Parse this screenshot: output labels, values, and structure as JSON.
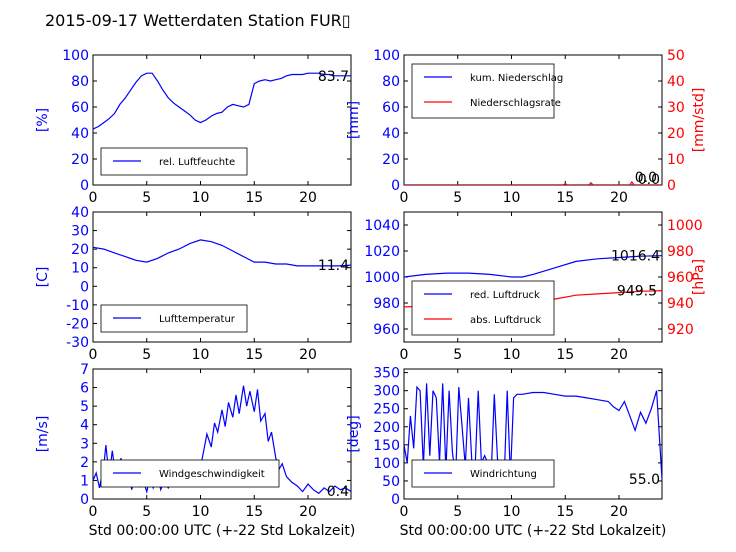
{
  "title": "2015-09-17 Wetterdaten Station FUR▯",
  "colors": {
    "primary": "#0000ff",
    "secondary": "#ff0000",
    "text": "#000000"
  },
  "chart_data": [
    {
      "type": "line",
      "id": "humidity",
      "ylabel": "[%]",
      "xlabel": "",
      "xlim": [
        0,
        24
      ],
      "ylim": [
        0,
        100
      ],
      "xticks": [
        0,
        5,
        10,
        15,
        20
      ],
      "yticks": [
        0,
        20,
        40,
        60,
        80,
        100
      ],
      "legend": "bottom-left",
      "end_label": "83.7",
      "series": [
        {
          "name": "rel. Luftfeuchte",
          "color": "#0000ff",
          "axis": "left",
          "x": [
            0,
            0.5,
            1,
            1.5,
            2,
            2.5,
            3,
            3.5,
            4,
            4.5,
            5,
            5.5,
            6,
            6.5,
            7,
            7.5,
            8,
            8.5,
            9,
            9.5,
            10,
            10.5,
            11,
            11.5,
            12,
            12.5,
            13,
            13.5,
            14,
            14.5,
            15,
            15.5,
            16,
            16.5,
            17,
            17.5,
            18,
            18.5,
            19,
            19.5,
            20,
            20.5,
            21,
            21.5,
            22,
            22.5,
            23,
            23.5,
            24
          ],
          "values": [
            43,
            45,
            48,
            51,
            55,
            62,
            67,
            73,
            79,
            84,
            86,
            86,
            80,
            73,
            67,
            63,
            60,
            57,
            54,
            50,
            48,
            50,
            53,
            55,
            56,
            60,
            62,
            61,
            60,
            62,
            78,
            80,
            81,
            80,
            81,
            82,
            84,
            85,
            85,
            85,
            86,
            86,
            86,
            85,
            85,
            84,
            84,
            84,
            84
          ]
        }
      ]
    },
    {
      "type": "line",
      "id": "precip",
      "ylabel": "[mm]",
      "y2label": "[mm/std]",
      "xlabel": "",
      "xlim": [
        0,
        24
      ],
      "ylim": [
        0,
        100
      ],
      "y2lim": [
        0,
        50
      ],
      "xticks": [
        0,
        5,
        10,
        15,
        20
      ],
      "yticks": [
        0,
        20,
        40,
        60,
        80,
        100
      ],
      "y2ticks": [
        0,
        10,
        20,
        30,
        40,
        50
      ],
      "legend": "top-left",
      "end_labels": [
        "0.0",
        "0.0"
      ],
      "series": [
        {
          "name": "kum. Niederschlag",
          "color": "#0000ff",
          "axis": "left",
          "x": [
            0,
            24
          ],
          "values": [
            0,
            0
          ]
        },
        {
          "name": "Niederschlagsrate",
          "color": "#ff0000",
          "axis": "right",
          "x": [
            0,
            14.8,
            15,
            15.2,
            17.2,
            17.4,
            17.6,
            21,
            21.2,
            21.4,
            24
          ],
          "values": [
            0,
            0,
            0.5,
            0,
            0,
            0.9,
            0,
            0,
            1.2,
            0,
            0
          ]
        }
      ]
    },
    {
      "type": "line",
      "id": "temperature",
      "ylabel": "[C]",
      "xlabel": "",
      "xlim": [
        0,
        24
      ],
      "ylim": [
        -30,
        40
      ],
      "xticks": [
        0,
        5,
        10,
        15,
        20
      ],
      "yticks": [
        -30,
        -20,
        -10,
        0,
        10,
        20,
        30,
        40
      ],
      "legend": "bottom-left",
      "end_label": "11.4",
      "series": [
        {
          "name": "Lufttemperatur",
          "color": "#0000ff",
          "axis": "left",
          "x": [
            0,
            1,
            2,
            3,
            4,
            5,
            6,
            7,
            8,
            9,
            10,
            11,
            12,
            13,
            14,
            15,
            16,
            17,
            18,
            19,
            20,
            21,
            22,
            23,
            24
          ],
          "values": [
            21,
            20,
            18,
            16,
            14,
            13,
            15,
            18,
            20,
            23,
            25,
            24,
            22,
            19,
            16,
            13,
            13,
            12,
            12,
            11,
            11,
            11,
            11,
            11,
            11.4
          ]
        }
      ]
    },
    {
      "type": "line",
      "id": "pressure",
      "ylabel": "",
      "y2label": "[hPa]",
      "xlabel": "",
      "xlim": [
        0,
        24
      ],
      "ylim": [
        950,
        1050
      ],
      "y2lim": [
        910,
        1010
      ],
      "xticks": [
        0,
        5,
        10,
        15,
        20
      ],
      "yticks": [
        960,
        980,
        1000,
        1020,
        1040
      ],
      "y2ticks": [
        920,
        940,
        960,
        980,
        1000
      ],
      "legend": "bottom-left",
      "end_labels": [
        "1016.4",
        "949.5"
      ],
      "series": [
        {
          "name": "red. Luftdruck",
          "color": "#0000ff",
          "axis": "left",
          "x": [
            0,
            2,
            4,
            6,
            8,
            10,
            11,
            12,
            14,
            16,
            18,
            20,
            22,
            24
          ],
          "values": [
            1000,
            1002,
            1003,
            1003,
            1002,
            1000,
            1000,
            1002,
            1007,
            1012,
            1014,
            1015,
            1016,
            1016.4
          ]
        },
        {
          "name": "abs. Luftdruck",
          "color": "#ff0000",
          "axis": "right",
          "x": [
            0,
            2,
            4,
            6,
            8,
            10,
            11,
            12,
            14,
            16,
            18,
            20,
            22,
            24
          ],
          "values": [
            937,
            937.5,
            938,
            938,
            937.5,
            937,
            937.5,
            939,
            943,
            946,
            947,
            948,
            949,
            949.5
          ]
        }
      ]
    },
    {
      "type": "line",
      "id": "windspeed",
      "ylabel": "[m/s]",
      "xlabel": "Std 00:00:00 UTC (+-22 Std Lokalzeit)",
      "xlim": [
        0,
        24
      ],
      "ylim": [
        0,
        7
      ],
      "xticks": [
        0,
        5,
        10,
        15,
        20
      ],
      "yticks": [
        0,
        1,
        2,
        3,
        4,
        5,
        6,
        7
      ],
      "legend": "bottom-center",
      "end_label": "0.4",
      "series": [
        {
          "name": "Windgeschwindigkeit",
          "color": "#0000ff",
          "axis": "left",
          "x": [
            0,
            0.3,
            0.6,
            1,
            1.2,
            1.5,
            1.8,
            2,
            2.3,
            2.6,
            3,
            3.3,
            3.6,
            4,
            4.3,
            4.6,
            5,
            5.3,
            5.6,
            6,
            6.3,
            6.6,
            7,
            7.3,
            7.6,
            8,
            8.3,
            8.6,
            9,
            9.3,
            9.6,
            10,
            10.3,
            10.6,
            11,
            11.3,
            11.6,
            12,
            12.3,
            12.6,
            13,
            13.3,
            13.6,
            14,
            14.3,
            14.6,
            15,
            15.3,
            15.6,
            16,
            16.3,
            16.6,
            17,
            17.3,
            17.6,
            18,
            18.5,
            19,
            19.5,
            20,
            20.5,
            21,
            21.5,
            22,
            22.5,
            23,
            23.5,
            24
          ],
          "values": [
            1.0,
            1.4,
            0.6,
            1.8,
            2.9,
            1.2,
            2.6,
            1.7,
            0.9,
            2.2,
            0.8,
            1.8,
            0.5,
            1.5,
            0.7,
            1.1,
            0.4,
            1.2,
            0.6,
            1.3,
            0.5,
            0.9,
            0.6,
            1.0,
            1.4,
            0.8,
            1.6,
            1.1,
            1.9,
            1.3,
            2.0,
            1.7,
            2.6,
            3.5,
            2.8,
            4.1,
            3.6,
            4.8,
            3.9,
            5.2,
            4.4,
            5.6,
            4.6,
            6.1,
            5.0,
            5.8,
            4.7,
            5.9,
            4.2,
            4.6,
            3.1,
            3.6,
            2.2,
            1.6,
            1.9,
            1.2,
            0.9,
            0.7,
            0.4,
            0.8,
            0.5,
            0.3,
            0.6,
            0.4,
            0.7,
            0.5,
            0.6,
            0.4
          ]
        }
      ]
    },
    {
      "type": "line",
      "id": "winddir",
      "ylabel": "[deg]",
      "xlabel": "Std 00:00:00 UTC (+-22 Std Lokalzeit)",
      "xlim": [
        0,
        24
      ],
      "ylim": [
        0,
        360
      ],
      "xticks": [
        0,
        5,
        10,
        15,
        20
      ],
      "yticks": [
        0,
        50,
        100,
        150,
        200,
        250,
        300,
        350
      ],
      "legend": "bottom-left",
      "end_label": "55.0",
      "series": [
        {
          "name": "Windrichtung",
          "color": "#0000ff",
          "axis": "left",
          "x": [
            0,
            0.3,
            0.6,
            0.9,
            1.2,
            1.5,
            1.8,
            2.1,
            2.4,
            2.7,
            3,
            3.3,
            3.6,
            3.9,
            4.2,
            4.5,
            4.8,
            5.1,
            5.4,
            5.7,
            6,
            6.3,
            6.6,
            6.9,
            7.2,
            7.5,
            7.8,
            8.1,
            8.4,
            8.7,
            9,
            9.3,
            9.6,
            9.9,
            10.2,
            10.5,
            11,
            12,
            13,
            14,
            15,
            16,
            17,
            18,
            19,
            19.5,
            20,
            20.5,
            21,
            21.5,
            22,
            22.5,
            23,
            23.5,
            24
          ],
          "values": [
            150,
            100,
            230,
            140,
            310,
            300,
            90,
            320,
            120,
            300,
            280,
            100,
            320,
            80,
            300,
            130,
            60,
            310,
            200,
            90,
            280,
            110,
            70,
            300,
            100,
            120,
            100,
            60,
            290,
            110,
            100,
            40,
            300,
            60,
            280,
            290,
            290,
            295,
            295,
            290,
            285,
            285,
            280,
            275,
            270,
            255,
            245,
            270,
            230,
            190,
            240,
            210,
            250,
            300,
            55
          ]
        }
      ]
    }
  ]
}
